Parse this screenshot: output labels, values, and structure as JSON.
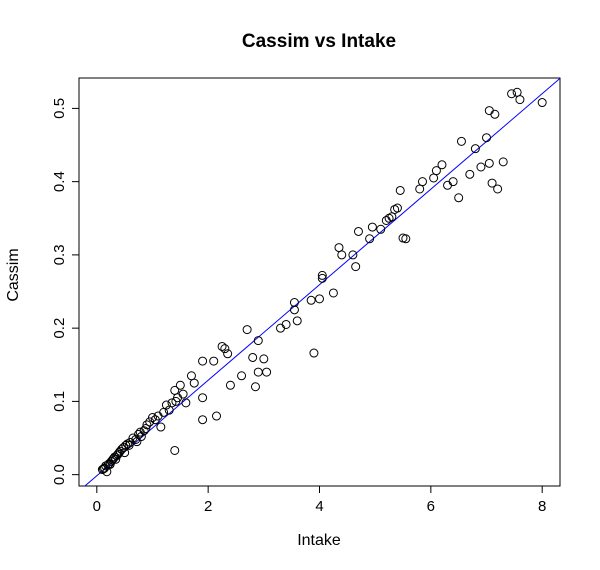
{
  "chart_data": {
    "type": "scatter",
    "title": "Cassim vs Intake",
    "xlabel": "Intake",
    "ylabel": "Cassim",
    "xlim": [
      -0.32,
      8.32
    ],
    "ylim": [
      -0.0155,
      0.5415
    ],
    "xticks": [
      0,
      2,
      4,
      6,
      8
    ],
    "yticks": [
      0.0,
      0.1,
      0.2,
      0.3,
      0.4,
      0.5
    ],
    "xtick_labels": [
      "0",
      "2",
      "4",
      "6",
      "8"
    ],
    "ytick_labels": [
      "0.0",
      "0.1",
      "0.2",
      "0.3",
      "0.4",
      "0.5"
    ],
    "grid": false,
    "legend": "none",
    "point_style": "open-circle",
    "point_color": "#000000",
    "fit_line": {
      "intercept": -0.0015,
      "slope": 0.0652,
      "color": "#0000ff"
    },
    "points": [
      [
        0.1,
        0.007
      ],
      [
        0.12,
        0.008
      ],
      [
        0.14,
        0.009
      ],
      [
        0.16,
        0.012
      ],
      [
        0.18,
        0.004
      ],
      [
        0.2,
        0.013
      ],
      [
        0.22,
        0.015
      ],
      [
        0.24,
        0.014
      ],
      [
        0.26,
        0.018
      ],
      [
        0.28,
        0.02
      ],
      [
        0.3,
        0.022
      ],
      [
        0.32,
        0.024
      ],
      [
        0.34,
        0.021
      ],
      [
        0.36,
        0.026
      ],
      [
        0.38,
        0.028
      ],
      [
        0.4,
        0.03
      ],
      [
        0.42,
        0.032
      ],
      [
        0.45,
        0.035
      ],
      [
        0.48,
        0.037
      ],
      [
        0.5,
        0.03
      ],
      [
        0.52,
        0.04
      ],
      [
        0.55,
        0.042
      ],
      [
        0.58,
        0.04
      ],
      [
        0.6,
        0.044
      ],
      [
        0.65,
        0.05
      ],
      [
        0.7,
        0.048
      ],
      [
        0.72,
        0.045
      ],
      [
        0.75,
        0.055
      ],
      [
        0.78,
        0.058
      ],
      [
        0.8,
        0.052
      ],
      [
        0.85,
        0.06
      ],
      [
        0.88,
        0.063
      ],
      [
        0.9,
        0.068
      ],
      [
        0.95,
        0.072
      ],
      [
        1.0,
        0.078
      ],
      [
        1.05,
        0.075
      ],
      [
        1.1,
        0.08
      ],
      [
        1.15,
        0.065
      ],
      [
        1.2,
        0.085
      ],
      [
        1.25,
        0.095
      ],
      [
        1.3,
        0.088
      ],
      [
        1.35,
        0.098
      ],
      [
        1.4,
        0.115
      ],
      [
        1.42,
        0.1
      ],
      [
        1.45,
        0.105
      ],
      [
        1.5,
        0.122
      ],
      [
        1.55,
        0.11
      ],
      [
        1.6,
        0.098
      ],
      [
        1.7,
        0.135
      ],
      [
        1.75,
        0.125
      ],
      [
        1.4,
        0.033
      ],
      [
        1.9,
        0.075
      ],
      [
        1.9,
        0.105
      ],
      [
        1.9,
        0.155
      ],
      [
        2.1,
        0.155
      ],
      [
        2.15,
        0.08
      ],
      [
        2.25,
        0.175
      ],
      [
        2.3,
        0.172
      ],
      [
        2.35,
        0.165
      ],
      [
        2.4,
        0.122
      ],
      [
        2.6,
        0.135
      ],
      [
        2.7,
        0.198
      ],
      [
        2.8,
        0.16
      ],
      [
        2.85,
        0.12
      ],
      [
        2.9,
        0.14
      ],
      [
        2.9,
        0.183
      ],
      [
        3.0,
        0.158
      ],
      [
        3.05,
        0.14
      ],
      [
        3.3,
        0.2
      ],
      [
        3.4,
        0.205
      ],
      [
        3.55,
        0.235
      ],
      [
        3.55,
        0.225
      ],
      [
        3.6,
        0.21
      ],
      [
        3.85,
        0.238
      ],
      [
        3.9,
        0.166
      ],
      [
        4.0,
        0.24
      ],
      [
        4.05,
        0.268
      ],
      [
        4.05,
        0.272
      ],
      [
        4.25,
        0.248
      ],
      [
        4.35,
        0.31
      ],
      [
        4.4,
        0.3
      ],
      [
        4.6,
        0.3
      ],
      [
        4.65,
        0.284
      ],
      [
        4.7,
        0.332
      ],
      [
        4.9,
        0.322
      ],
      [
        4.95,
        0.338
      ],
      [
        5.1,
        0.335
      ],
      [
        5.2,
        0.347
      ],
      [
        5.25,
        0.35
      ],
      [
        5.3,
        0.352
      ],
      [
        5.35,
        0.362
      ],
      [
        5.4,
        0.364
      ],
      [
        5.45,
        0.388
      ],
      [
        5.5,
        0.323
      ],
      [
        5.55,
        0.322
      ],
      [
        5.8,
        0.39
      ],
      [
        5.85,
        0.4
      ],
      [
        6.05,
        0.405
      ],
      [
        6.1,
        0.415
      ],
      [
        6.2,
        0.423
      ],
      [
        6.3,
        0.395
      ],
      [
        6.4,
        0.4
      ],
      [
        6.5,
        0.378
      ],
      [
        6.55,
        0.455
      ],
      [
        6.7,
        0.41
      ],
      [
        6.8,
        0.445
      ],
      [
        6.9,
        0.42
      ],
      [
        7.0,
        0.46
      ],
      [
        7.05,
        0.425
      ],
      [
        7.1,
        0.398
      ],
      [
        7.2,
        0.39
      ],
      [
        7.3,
        0.427
      ],
      [
        7.05,
        0.497
      ],
      [
        7.15,
        0.492
      ],
      [
        7.45,
        0.52
      ],
      [
        7.55,
        0.522
      ],
      [
        7.6,
        0.512
      ],
      [
        8.0,
        0.508
      ]
    ]
  }
}
